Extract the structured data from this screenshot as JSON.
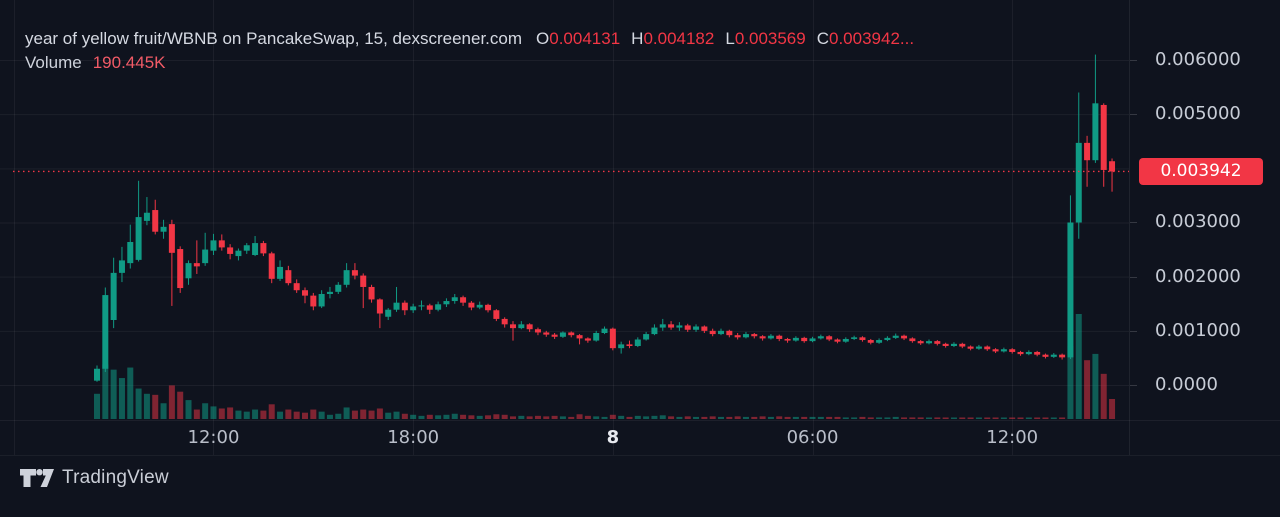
{
  "header": {
    "title": "year of yellow fruit/WBNB on PancakeSwap, 15, dexscreener.com",
    "ohlc": {
      "o_label": "O",
      "o_value": "0.004131",
      "h_label": "H",
      "h_value": "0.004182",
      "l_label": "L",
      "l_value": "0.003569",
      "c_label": "C",
      "c_value": "0.003942..."
    },
    "volume_label": "Volume",
    "volume_value": "190.445K"
  },
  "footer": {
    "brand": "TradingView"
  },
  "colors": {
    "background": "#0f131e",
    "up": "#109b85",
    "down": "#f23645",
    "grid": "rgba(255,255,255,0.055)",
    "price_line": "#f23645",
    "badge_bg": "#f23645",
    "axis_text": "#c7ccd6",
    "title_text": "#d5d9e2",
    "volume_value_text": "#f25b67"
  },
  "chart_data": {
    "type": "candlestick",
    "symbol": "year of yellow fruit/WBNB",
    "venue": "PancakeSwap",
    "interval_minutes": 15,
    "source": "dexscreener.com",
    "legend_last_candle": {
      "open": 0.004131,
      "high": 0.004182,
      "low": 0.003569,
      "close": 0.003942,
      "volume": "190.445K"
    },
    "price_line_value": 0.003942,
    "price_line_label": "0.003942",
    "y_range": [
      0,
      0.0063
    ],
    "grid": true,
    "price_ticks": [
      {
        "label": "0.006000",
        "value": 0.006
      },
      {
        "label": "0.005000",
        "value": 0.005
      },
      {
        "label": "0.003000",
        "value": 0.003
      },
      {
        "label": "0.002000",
        "value": 0.002
      },
      {
        "label": "0.001000",
        "value": 0.001
      },
      {
        "label": "0.0000",
        "value": 0.0
      }
    ],
    "grid_prices": [
      0.006,
      0.005,
      0.004,
      0.003,
      0.002,
      0.001,
      0.0
    ],
    "time_ticks": [
      {
        "label": "",
        "index": -10,
        "bold": false
      },
      {
        "label": "12:00",
        "index": 14,
        "bold": false
      },
      {
        "label": "18:00",
        "index": 38,
        "bold": false
      },
      {
        "label": "8",
        "index": 62,
        "bold": true
      },
      {
        "label": "06:00",
        "index": 86,
        "bold": false
      },
      {
        "label": "12:00",
        "index": 110,
        "bold": false
      }
    ],
    "volume_axis_max_k": 1000,
    "candles_format": [
      "open",
      "high",
      "low",
      "close",
      "volume_k"
    ],
    "candles": [
      [
        8e-05,
        0.00036,
        6e-05,
        0.0003,
        240
      ],
      [
        0.0003,
        0.0018,
        0.00024,
        0.00166,
        520
      ],
      [
        0.0012,
        0.00235,
        0.00105,
        0.00207,
        470
      ],
      [
        0.00207,
        0.00255,
        0.0019,
        0.0023,
        390
      ],
      [
        0.00225,
        0.00296,
        0.00215,
        0.00264,
        490
      ],
      [
        0.00231,
        0.00377,
        0.00228,
        0.0031,
        290
      ],
      [
        0.00303,
        0.00347,
        0.00295,
        0.00318,
        240
      ],
      [
        0.00323,
        0.00342,
        0.00278,
        0.00283,
        230
      ],
      [
        0.00283,
        0.00305,
        0.0027,
        0.00292,
        150
      ],
      [
        0.00297,
        0.00305,
        0.00146,
        0.00244,
        320
      ],
      [
        0.00251,
        0.00256,
        0.0017,
        0.00179,
        260
      ],
      [
        0.00197,
        0.0023,
        0.00185,
        0.00225,
        180
      ],
      [
        0.00225,
        0.00267,
        0.00205,
        0.00219,
        90
      ],
      [
        0.00225,
        0.00281,
        0.0022,
        0.0025,
        150
      ],
      [
        0.00248,
        0.00279,
        0.0024,
        0.00267,
        120
      ],
      [
        0.00267,
        0.00278,
        0.00248,
        0.00254,
        100
      ],
      [
        0.00254,
        0.0026,
        0.00232,
        0.00242,
        110
      ],
      [
        0.00238,
        0.00252,
        0.0023,
        0.00248,
        80
      ],
      [
        0.00248,
        0.00262,
        0.00242,
        0.00258,
        70
      ],
      [
        0.0024,
        0.00275,
        0.00238,
        0.00262,
        90
      ],
      [
        0.00262,
        0.00266,
        0.00238,
        0.00243,
        80
      ],
      [
        0.00243,
        0.00246,
        0.00188,
        0.00196,
        140
      ],
      [
        0.00196,
        0.0023,
        0.00192,
        0.00218,
        70
      ],
      [
        0.00212,
        0.0022,
        0.00184,
        0.00188,
        90
      ],
      [
        0.00188,
        0.00195,
        0.0017,
        0.00175,
        70
      ],
      [
        0.00175,
        0.0018,
        0.00151,
        0.00165,
        60
      ],
      [
        0.00165,
        0.0017,
        0.00138,
        0.00145,
        90
      ],
      [
        0.00145,
        0.00175,
        0.00142,
        0.00168,
        70
      ],
      [
        0.00168,
        0.00181,
        0.0016,
        0.00172,
        40
      ],
      [
        0.00172,
        0.0019,
        0.00168,
        0.00185,
        50
      ],
      [
        0.00185,
        0.00225,
        0.0018,
        0.00212,
        110
      ],
      [
        0.00212,
        0.00225,
        0.00195,
        0.00202,
        80
      ],
      [
        0.00202,
        0.00206,
        0.00142,
        0.00181,
        90
      ],
      [
        0.00181,
        0.00185,
        0.00152,
        0.00158,
        80
      ],
      [
        0.00158,
        0.0016,
        0.00105,
        0.00132,
        100
      ],
      [
        0.00126,
        0.00142,
        0.0012,
        0.00139,
        60
      ],
      [
        0.00139,
        0.00181,
        0.00135,
        0.00152,
        70
      ],
      [
        0.00152,
        0.00156,
        0.00129,
        0.00138,
        50
      ],
      [
        0.00138,
        0.0015,
        0.00133,
        0.00145,
        40
      ],
      [
        0.00145,
        0.00156,
        0.00138,
        0.00147,
        30
      ],
      [
        0.00147,
        0.0015,
        0.00131,
        0.00139,
        40
      ],
      [
        0.00139,
        0.00154,
        0.00136,
        0.00149,
        35
      ],
      [
        0.00149,
        0.0016,
        0.00144,
        0.00155,
        40
      ],
      [
        0.00155,
        0.00168,
        0.0015,
        0.00162,
        50
      ],
      [
        0.00162,
        0.00165,
        0.00146,
        0.00152,
        40
      ],
      [
        0.00152,
        0.00155,
        0.00138,
        0.00143,
        35
      ],
      [
        0.00143,
        0.00154,
        0.0014,
        0.00148,
        30
      ],
      [
        0.00148,
        0.0015,
        0.00134,
        0.00138,
        35
      ],
      [
        0.00138,
        0.0014,
        0.00118,
        0.00122,
        45
      ],
      [
        0.00122,
        0.00125,
        0.00106,
        0.00112,
        40
      ],
      [
        0.00112,
        0.00118,
        0.00082,
        0.00105,
        25
      ],
      [
        0.00105,
        0.00118,
        0.00103,
        0.00112,
        30
      ],
      [
        0.00112,
        0.00114,
        0.00098,
        0.00103,
        25
      ],
      [
        0.00103,
        0.00106,
        0.00092,
        0.00097,
        30
      ],
      [
        0.00097,
        0.001,
        0.00089,
        0.00093,
        25
      ],
      [
        0.00093,
        0.00096,
        0.00085,
        0.00089,
        30
      ],
      [
        0.00089,
        0.00099,
        0.00087,
        0.00097,
        25
      ],
      [
        0.00097,
        0.00099,
        0.00088,
        0.00092,
        20
      ],
      [
        0.00092,
        0.00094,
        0.00075,
        0.00086,
        45
      ],
      [
        0.00086,
        0.00088,
        0.00078,
        0.00082,
        30
      ],
      [
        0.00082,
        0.001,
        0.0008,
        0.00096,
        25
      ],
      [
        0.00096,
        0.00108,
        0.00094,
        0.00104,
        20
      ],
      [
        0.00104,
        0.00106,
        0.00064,
        0.00068,
        40
      ],
      [
        0.00068,
        0.0008,
        0.00058,
        0.00075,
        30
      ],
      [
        0.00075,
        0.00082,
        0.00068,
        0.00072,
        20
      ],
      [
        0.00072,
        0.00088,
        0.0007,
        0.00084,
        30
      ],
      [
        0.00084,
        0.00098,
        0.00082,
        0.00094,
        25
      ],
      [
        0.00094,
        0.00112,
        0.00092,
        0.00106,
        30
      ],
      [
        0.00106,
        0.00122,
        0.001,
        0.00112,
        35
      ],
      [
        0.00112,
        0.00118,
        0.00102,
        0.00106,
        25
      ],
      [
        0.00106,
        0.00116,
        0.001,
        0.0011,
        20
      ],
      [
        0.0011,
        0.00113,
        0.00098,
        0.00102,
        25
      ],
      [
        0.00102,
        0.00112,
        0.00098,
        0.00108,
        20
      ],
      [
        0.00108,
        0.0011,
        0.00096,
        0.001,
        20
      ],
      [
        0.001,
        0.00104,
        0.0009,
        0.00094,
        25
      ],
      [
        0.00094,
        0.00104,
        0.00092,
        0.001,
        20
      ],
      [
        0.001,
        0.00102,
        0.00088,
        0.00092,
        20
      ],
      [
        0.00092,
        0.00096,
        0.00084,
        0.00088,
        25
      ],
      [
        0.00088,
        0.00098,
        0.00086,
        0.00094,
        20
      ],
      [
        0.00094,
        0.00096,
        0.00086,
        0.0009,
        20
      ],
      [
        0.0009,
        0.00092,
        0.00082,
        0.00086,
        25
      ],
      [
        0.00086,
        0.00094,
        0.00084,
        0.00091,
        20
      ],
      [
        0.00091,
        0.00093,
        0.00081,
        0.00085,
        25
      ],
      [
        0.00085,
        0.00087,
        0.00078,
        0.00082,
        20
      ],
      [
        0.00082,
        0.0009,
        0.0008,
        0.00087,
        20
      ],
      [
        0.00087,
        0.00089,
        0.00078,
        0.00081,
        20
      ],
      [
        0.00081,
        0.00089,
        0.00079,
        0.00086,
        20
      ],
      [
        0.00086,
        0.00093,
        0.00084,
        0.0009,
        20
      ],
      [
        0.0009,
        0.00092,
        0.00081,
        0.00084,
        20
      ],
      [
        0.00084,
        0.00086,
        0.00077,
        0.0008,
        20
      ],
      [
        0.0008,
        0.00088,
        0.00078,
        0.00085,
        15
      ],
      [
        0.00085,
        0.00091,
        0.00083,
        0.00088,
        15
      ],
      [
        0.00088,
        0.0009,
        0.0008,
        0.00083,
        20
      ],
      [
        0.00083,
        0.00085,
        0.00075,
        0.00078,
        15
      ],
      [
        0.00078,
        0.00086,
        0.00076,
        0.00083,
        15
      ],
      [
        0.00083,
        0.0009,
        0.00081,
        0.00087,
        15
      ],
      [
        0.00087,
        0.00095,
        0.00085,
        0.00091,
        20
      ],
      [
        0.00091,
        0.00093,
        0.00083,
        0.00086,
        15
      ],
      [
        0.00086,
        0.00088,
        0.00078,
        0.00081,
        15
      ],
      [
        0.00081,
        0.00083,
        0.00074,
        0.00077,
        15
      ],
      [
        0.00077,
        0.00084,
        0.00075,
        0.00081,
        12
      ],
      [
        0.00081,
        0.00083,
        0.00073,
        0.00076,
        15
      ],
      [
        0.00076,
        0.00078,
        0.00069,
        0.00072,
        12
      ],
      [
        0.00072,
        0.00079,
        0.0007,
        0.00076,
        12
      ],
      [
        0.00076,
        0.00078,
        0.00068,
        0.00071,
        12
      ],
      [
        0.00071,
        0.00073,
        0.00064,
        0.00067,
        12
      ],
      [
        0.00067,
        0.00074,
        0.00065,
        0.00071,
        10
      ],
      [
        0.00071,
        0.00073,
        0.00063,
        0.00066,
        12
      ],
      [
        0.00066,
        0.00068,
        0.00059,
        0.00062,
        12
      ],
      [
        0.00062,
        0.00069,
        0.0006,
        0.00066,
        10
      ],
      [
        0.00066,
        0.00068,
        0.00058,
        0.00061,
        12
      ],
      [
        0.00061,
        0.00063,
        0.00054,
        0.00057,
        12
      ],
      [
        0.00057,
        0.00064,
        0.00055,
        0.00061,
        10
      ],
      [
        0.00061,
        0.00063,
        0.00053,
        0.00056,
        12
      ],
      [
        0.00056,
        0.00058,
        0.00049,
        0.00052,
        12
      ],
      [
        0.00052,
        0.00059,
        0.0005,
        0.00056,
        10
      ],
      [
        0.00056,
        0.00058,
        0.00047,
        0.00051,
        12
      ],
      [
        0.00051,
        0.0035,
        0.00048,
        0.003,
        695
      ],
      [
        0.003,
        0.0054,
        0.0027,
        0.00447,
        1000
      ],
      [
        0.00447,
        0.0046,
        0.00366,
        0.00415,
        560
      ],
      [
        0.00415,
        0.0061,
        0.0041,
        0.0052,
        620
      ],
      [
        0.00517,
        0.0052,
        0.00366,
        0.00397,
        430
      ],
      [
        0.004131,
        0.004182,
        0.003569,
        0.003942,
        190.445
      ]
    ]
  }
}
